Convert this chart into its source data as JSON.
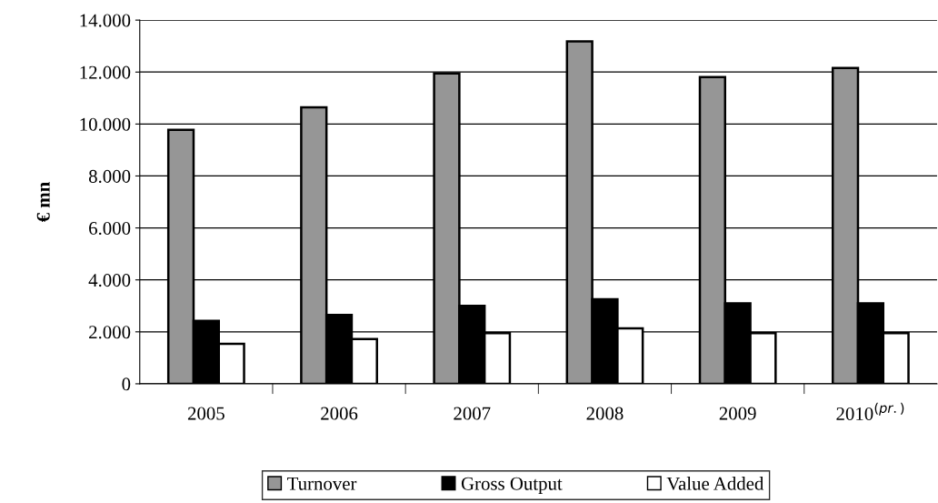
{
  "chart_data": {
    "type": "bar",
    "ylabel": "€ mn",
    "categories": [
      "2005",
      "2006",
      "2007",
      "2008",
      "2009",
      "2010$^{(pr.)}$"
    ],
    "series": [
      {
        "name": "Turnover",
        "color": "#969696",
        "values": [
          9780,
          10640,
          11950,
          13180,
          11810,
          12160
        ]
      },
      {
        "name": "Gross Output",
        "color": "#000000",
        "values": [
          2420,
          2650,
          3000,
          3250,
          3100,
          3100
        ]
      },
      {
        "name": "Value Added",
        "color": "#ffffff",
        "values": [
          1540,
          1720,
          1950,
          2130,
          1950,
          1950
        ]
      }
    ],
    "ylim": [
      0,
      14000
    ],
    "yticks": [
      0,
      {
        "value": 2000,
        "label": "2.000"
      },
      {
        "value": 4000,
        "label": "4.000"
      },
      {
        "value": 6000,
        "label": "6.000"
      },
      {
        "value": 8000,
        "label": "8.000"
      },
      {
        "value": 10000,
        "label": "10.000"
      },
      {
        "value": 12000,
        "label": "12.000"
      },
      {
        "value": 14000,
        "label": "14.000"
      }
    ],
    "grid": "y",
    "legend": "bottom"
  }
}
